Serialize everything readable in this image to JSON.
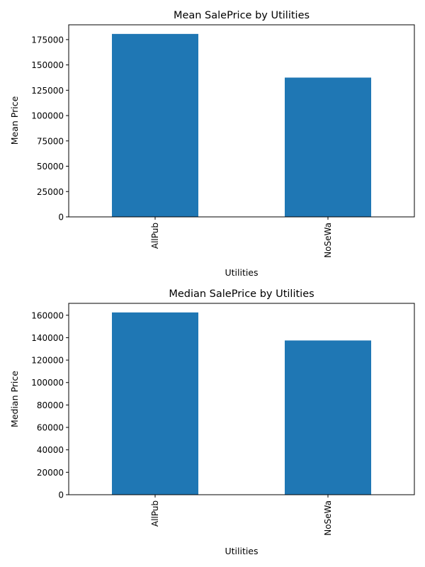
{
  "chart_data": [
    {
      "type": "bar",
      "title": "Mean SalePrice by Utilities",
      "xlabel": "Utilities",
      "ylabel": "Mean Price",
      "categories": [
        "AllPub",
        "NoSeWa"
      ],
      "values": [
        180600,
        137500
      ],
      "ylim": [
        0,
        189600
      ],
      "yticks": [
        0,
        25000,
        50000,
        75000,
        100000,
        125000,
        150000,
        175000
      ],
      "bar_color": "#1f77b4",
      "grid": false,
      "legend": "none"
    },
    {
      "type": "bar",
      "title": "Median SalePrice by Utilities",
      "xlabel": "Utilities",
      "ylabel": "Median Price",
      "categories": [
        "AllPub",
        "NoSeWa"
      ],
      "values": [
        162500,
        137500
      ],
      "ylim": [
        0,
        170600
      ],
      "yticks": [
        0,
        20000,
        40000,
        60000,
        80000,
        100000,
        120000,
        140000,
        160000
      ],
      "bar_color": "#1f77b4",
      "grid": false,
      "legend": "none"
    }
  ]
}
